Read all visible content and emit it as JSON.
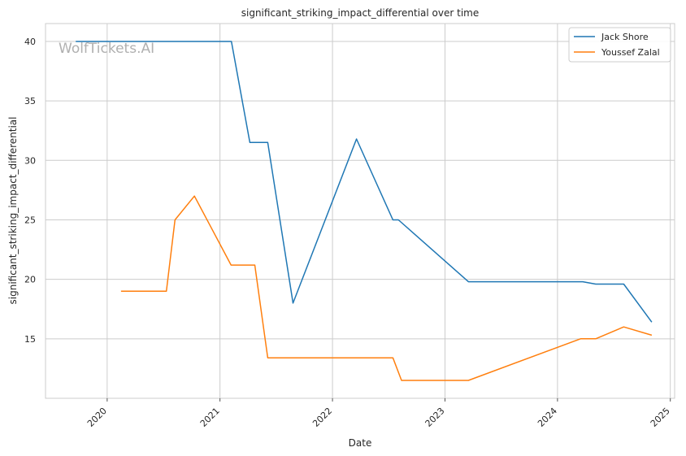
{
  "chart_data": {
    "type": "line",
    "title": "significant_striking_impact_differential over time",
    "xlabel": "Date",
    "ylabel": "significant_striking_impact_differential",
    "watermark": "WolfTickets.AI",
    "x_ticks": [
      "2020",
      "2021",
      "2022",
      "2023",
      "2024",
      "2025"
    ],
    "y_ticks": [
      15,
      20,
      25,
      30,
      35,
      40
    ],
    "xlim": [
      "2019-06-15",
      "2025-01-15"
    ],
    "ylim": [
      10,
      41.5
    ],
    "grid": true,
    "legend_position": "top-right",
    "series": [
      {
        "name": "Jack Shore",
        "color": "#1f77b4",
        "points": [
          [
            "2019-09-21",
            40.0
          ],
          [
            "2021-02-07",
            40.0
          ],
          [
            "2021-04-08",
            31.5
          ],
          [
            "2021-06-05",
            31.5
          ],
          [
            "2021-08-26",
            18.0
          ],
          [
            "2022-03-20",
            31.8
          ],
          [
            "2022-07-16",
            25.0
          ],
          [
            "2022-08-03",
            25.0
          ],
          [
            "2023-03-18",
            19.8
          ],
          [
            "2024-03-23",
            19.8
          ],
          [
            "2024-05-04",
            19.6
          ],
          [
            "2024-08-03",
            19.6
          ],
          [
            "2024-11-02",
            16.4
          ]
        ]
      },
      {
        "name": "Youssef Zalal",
        "color": "#ff7f0e",
        "points": [
          [
            "2020-02-15",
            19.0
          ],
          [
            "2020-07-11",
            19.0
          ],
          [
            "2020-08-08",
            25.0
          ],
          [
            "2020-10-10",
            27.0
          ],
          [
            "2021-02-06",
            21.2
          ],
          [
            "2021-04-24",
            21.2
          ],
          [
            "2021-06-05",
            13.4
          ],
          [
            "2022-07-16",
            13.4
          ],
          [
            "2022-08-13",
            11.5
          ],
          [
            "2023-03-18",
            11.5
          ],
          [
            "2024-03-16",
            15.0
          ],
          [
            "2024-05-04",
            15.0
          ],
          [
            "2024-08-03",
            16.0
          ],
          [
            "2024-11-02",
            15.3
          ]
        ]
      }
    ]
  }
}
